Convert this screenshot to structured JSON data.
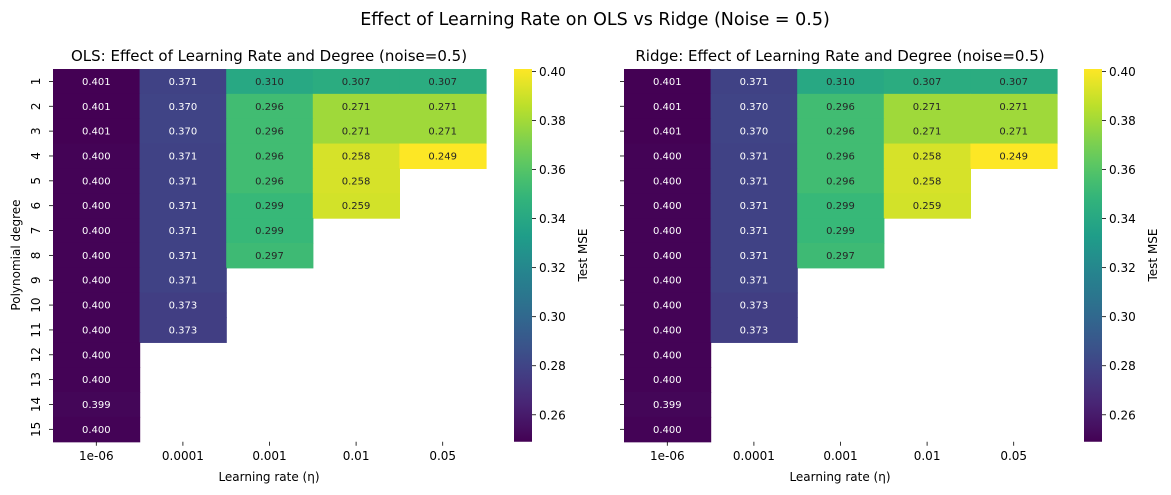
{
  "suptitle": "Effect of Learning Rate on OLS vs Ridge (Noise = 0.5)",
  "colorbar": {
    "label": "Test MSE",
    "min": 0.249,
    "max": 0.401,
    "ticks": [
      "0.40",
      "0.38",
      "0.36",
      "0.34",
      "0.32",
      "0.30",
      "0.28",
      "0.26"
    ],
    "tick_values": [
      0.4,
      0.38,
      0.36,
      0.34,
      0.32,
      0.3,
      0.28,
      0.26
    ],
    "colormap": "viridis_r"
  },
  "chart_data": [
    {
      "type": "heatmap",
      "title": "OLS: Effect of Learning Rate and Degree (noise=0.5)",
      "xlabel": "Learning rate (η)",
      "ylabel": "Polynomial degree",
      "x": [
        "1e-06",
        "0.0001",
        "0.001",
        "0.01",
        "0.05"
      ],
      "y": [
        "1",
        "2",
        "3",
        "4",
        "5",
        "6",
        "7",
        "8",
        "9",
        "10",
        "11",
        "12",
        "13",
        "14",
        "15"
      ],
      "values": [
        [
          0.401,
          0.371,
          0.31,
          0.307,
          0.307
        ],
        [
          0.401,
          0.37,
          0.296,
          0.271,
          0.271
        ],
        [
          0.401,
          0.37,
          0.296,
          0.271,
          0.271
        ],
        [
          0.4,
          0.371,
          0.296,
          0.258,
          0.249
        ],
        [
          0.4,
          0.371,
          0.296,
          0.258,
          null
        ],
        [
          0.4,
          0.371,
          0.299,
          0.259,
          null
        ],
        [
          0.4,
          0.371,
          0.299,
          null,
          null
        ],
        [
          0.4,
          0.371,
          0.297,
          null,
          null
        ],
        [
          0.4,
          0.371,
          null,
          null,
          null
        ],
        [
          0.4,
          0.373,
          null,
          null,
          null
        ],
        [
          0.4,
          0.373,
          null,
          null,
          null
        ],
        [
          0.4,
          null,
          null,
          null,
          null
        ],
        [
          0.4,
          null,
          null,
          null,
          null
        ],
        [
          0.399,
          null,
          null,
          null,
          null
        ],
        [
          0.4,
          null,
          null,
          null,
          null
        ]
      ],
      "labels": [
        [
          "0.401",
          "0.371",
          "0.310",
          "0.307",
          "0.307"
        ],
        [
          "0.401",
          "0.370",
          "0.296",
          "0.271",
          "0.271"
        ],
        [
          "0.401",
          "0.370",
          "0.296",
          "0.271",
          "0.271"
        ],
        [
          "0.400",
          "0.371",
          "0.296",
          "0.258",
          "0.249"
        ],
        [
          "0.400",
          "0.371",
          "0.296",
          "0.258",
          ""
        ],
        [
          "0.400",
          "0.371",
          "0.299",
          "0.259",
          ""
        ],
        [
          "0.400",
          "0.371",
          "0.299",
          "",
          ""
        ],
        [
          "0.400",
          "0.371",
          "0.297",
          "",
          ""
        ],
        [
          "0.400",
          "0.371",
          "",
          "",
          ""
        ],
        [
          "0.400",
          "0.373",
          "",
          "",
          ""
        ],
        [
          "0.400",
          "0.373",
          "",
          "",
          ""
        ],
        [
          "0.400",
          "",
          "",
          "",
          ""
        ],
        [
          "0.400",
          "",
          "",
          "",
          ""
        ],
        [
          "0.399",
          "",
          "",
          "",
          ""
        ],
        [
          "0.400",
          "",
          "",
          "",
          ""
        ]
      ]
    },
    {
      "type": "heatmap",
      "title": "Ridge: Effect of Learning Rate and Degree (noise=0.5)",
      "xlabel": "Learning rate (η)",
      "ylabel": "",
      "x": [
        "1e-06",
        "0.0001",
        "0.001",
        "0.01",
        "0.05"
      ],
      "y": [
        "1",
        "2",
        "3",
        "4",
        "5",
        "6",
        "7",
        "8",
        "9",
        "10",
        "11",
        "12",
        "13",
        "14",
        "15"
      ],
      "values": [
        [
          0.401,
          0.371,
          0.31,
          0.307,
          0.307
        ],
        [
          0.401,
          0.37,
          0.296,
          0.271,
          0.271
        ],
        [
          0.401,
          0.37,
          0.296,
          0.271,
          0.271
        ],
        [
          0.4,
          0.371,
          0.296,
          0.258,
          0.249
        ],
        [
          0.4,
          0.371,
          0.296,
          0.258,
          null
        ],
        [
          0.4,
          0.371,
          0.299,
          0.259,
          null
        ],
        [
          0.4,
          0.371,
          0.299,
          null,
          null
        ],
        [
          0.4,
          0.371,
          0.297,
          null,
          null
        ],
        [
          0.4,
          0.371,
          null,
          null,
          null
        ],
        [
          0.4,
          0.373,
          null,
          null,
          null
        ],
        [
          0.4,
          0.373,
          null,
          null,
          null
        ],
        [
          0.4,
          null,
          null,
          null,
          null
        ],
        [
          0.4,
          null,
          null,
          null,
          null
        ],
        [
          0.399,
          null,
          null,
          null,
          null
        ],
        [
          0.4,
          null,
          null,
          null,
          null
        ]
      ],
      "labels": [
        [
          "0.401",
          "0.371",
          "0.310",
          "0.307",
          "0.307"
        ],
        [
          "0.401",
          "0.370",
          "0.296",
          "0.271",
          "0.271"
        ],
        [
          "0.401",
          "0.370",
          "0.296",
          "0.271",
          "0.271"
        ],
        [
          "0.400",
          "0.371",
          "0.296",
          "0.258",
          "0.249"
        ],
        [
          "0.400",
          "0.371",
          "0.296",
          "0.258",
          ""
        ],
        [
          "0.400",
          "0.371",
          "0.299",
          "0.259",
          ""
        ],
        [
          "0.400",
          "0.371",
          "0.299",
          "",
          ""
        ],
        [
          "0.400",
          "0.371",
          "0.297",
          "",
          ""
        ],
        [
          "0.400",
          "0.371",
          "",
          "",
          ""
        ],
        [
          "0.400",
          "0.373",
          "",
          "",
          ""
        ],
        [
          "0.400",
          "0.373",
          "",
          "",
          ""
        ],
        [
          "0.400",
          "",
          "",
          "",
          ""
        ],
        [
          "0.400",
          "",
          "",
          "",
          ""
        ],
        [
          "0.399",
          "",
          "",
          "",
          ""
        ],
        [
          "0.400",
          "",
          "",
          "",
          ""
        ]
      ]
    }
  ]
}
